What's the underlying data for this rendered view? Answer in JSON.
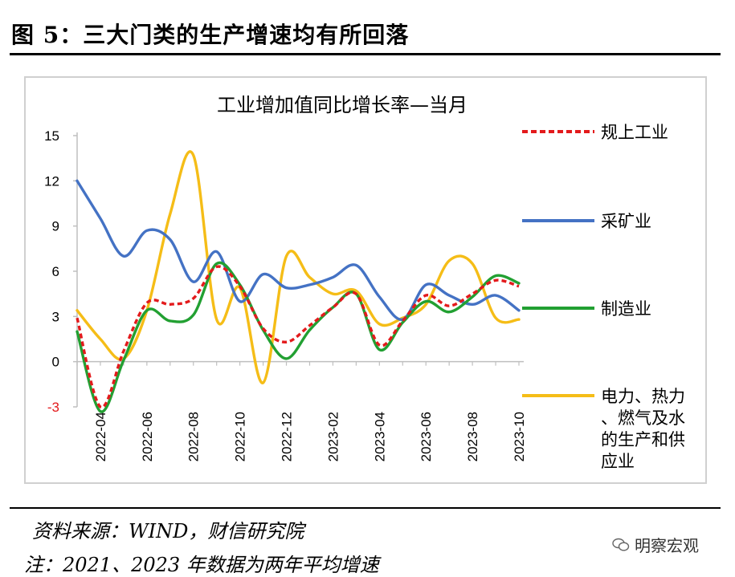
{
  "header": {
    "title": "图 5：三大门类的生产增速均有所回落"
  },
  "footer": {
    "source": "资料来源：WIND，财信研究院",
    "note": "注：2021、2023 年数据为两年平均增速",
    "watermark": "明察宏观"
  },
  "chart_data": {
    "type": "line",
    "title": "工业增加值同比增长率—当月",
    "xlabel": "",
    "ylabel": "",
    "ylim": [
      -3,
      15
    ],
    "yticks": [
      "15",
      "12",
      "9",
      "6",
      "3",
      "0",
      "-3"
    ],
    "x": [
      "2022-03",
      "2022-04",
      "2022-05",
      "2022-06",
      "2022-07",
      "2022-08",
      "2022-09",
      "2022-10",
      "2022-11",
      "2022-12",
      "2023-01",
      "2023-02",
      "2023-03",
      "2023-04",
      "2023-05",
      "2023-06",
      "2023-07",
      "2023-08",
      "2023-09",
      "2023-10"
    ],
    "xticks": [
      "2022-04",
      "2022-06",
      "2022-08",
      "2022-10",
      "2022-12",
      "2023-02",
      "2023-04",
      "2023-06",
      "2023-08",
      "2023-10"
    ],
    "grid": false,
    "legend_position": "right",
    "series": [
      {
        "name": "规上工业",
        "color": "#e31a1c",
        "dash": true,
        "values": [
          2.9,
          -3.0,
          0.7,
          3.9,
          3.8,
          4.2,
          6.3,
          5.0,
          2.2,
          1.3,
          2.4,
          3.6,
          4.5,
          1.1,
          2.7,
          4.4,
          3.7,
          4.5,
          5.4,
          5.0
        ]
      },
      {
        "name": "采矿业",
        "color": "#4472c4",
        "dash": false,
        "values": [
          12.0,
          9.5,
          7.0,
          8.7,
          8.1,
          5.3,
          7.3,
          4.0,
          5.8,
          4.9,
          5.1,
          5.6,
          6.4,
          4.3,
          2.8,
          5.1,
          4.4,
          3.8,
          4.4,
          3.4
        ]
      },
      {
        "name": "制造业",
        "color": "#22a032",
        "dash": false,
        "values": [
          2.0,
          -3.3,
          0.1,
          3.4,
          2.7,
          3.1,
          6.5,
          5.1,
          2.1,
          0.2,
          2.1,
          3.6,
          4.5,
          0.8,
          2.6,
          4.0,
          3.3,
          4.3,
          5.7,
          5.2
        ]
      },
      {
        "name": "电力、热力、燃气及水的生产和供应业",
        "color": "#f5bd17",
        "dash": false,
        "values": [
          3.4,
          1.5,
          0.2,
          3.4,
          9.8,
          13.7,
          2.8,
          4.9,
          -1.4,
          7.0,
          5.6,
          4.5,
          4.7,
          2.5,
          2.9,
          3.8,
          6.7,
          6.5,
          2.9,
          2.8
        ]
      }
    ]
  }
}
